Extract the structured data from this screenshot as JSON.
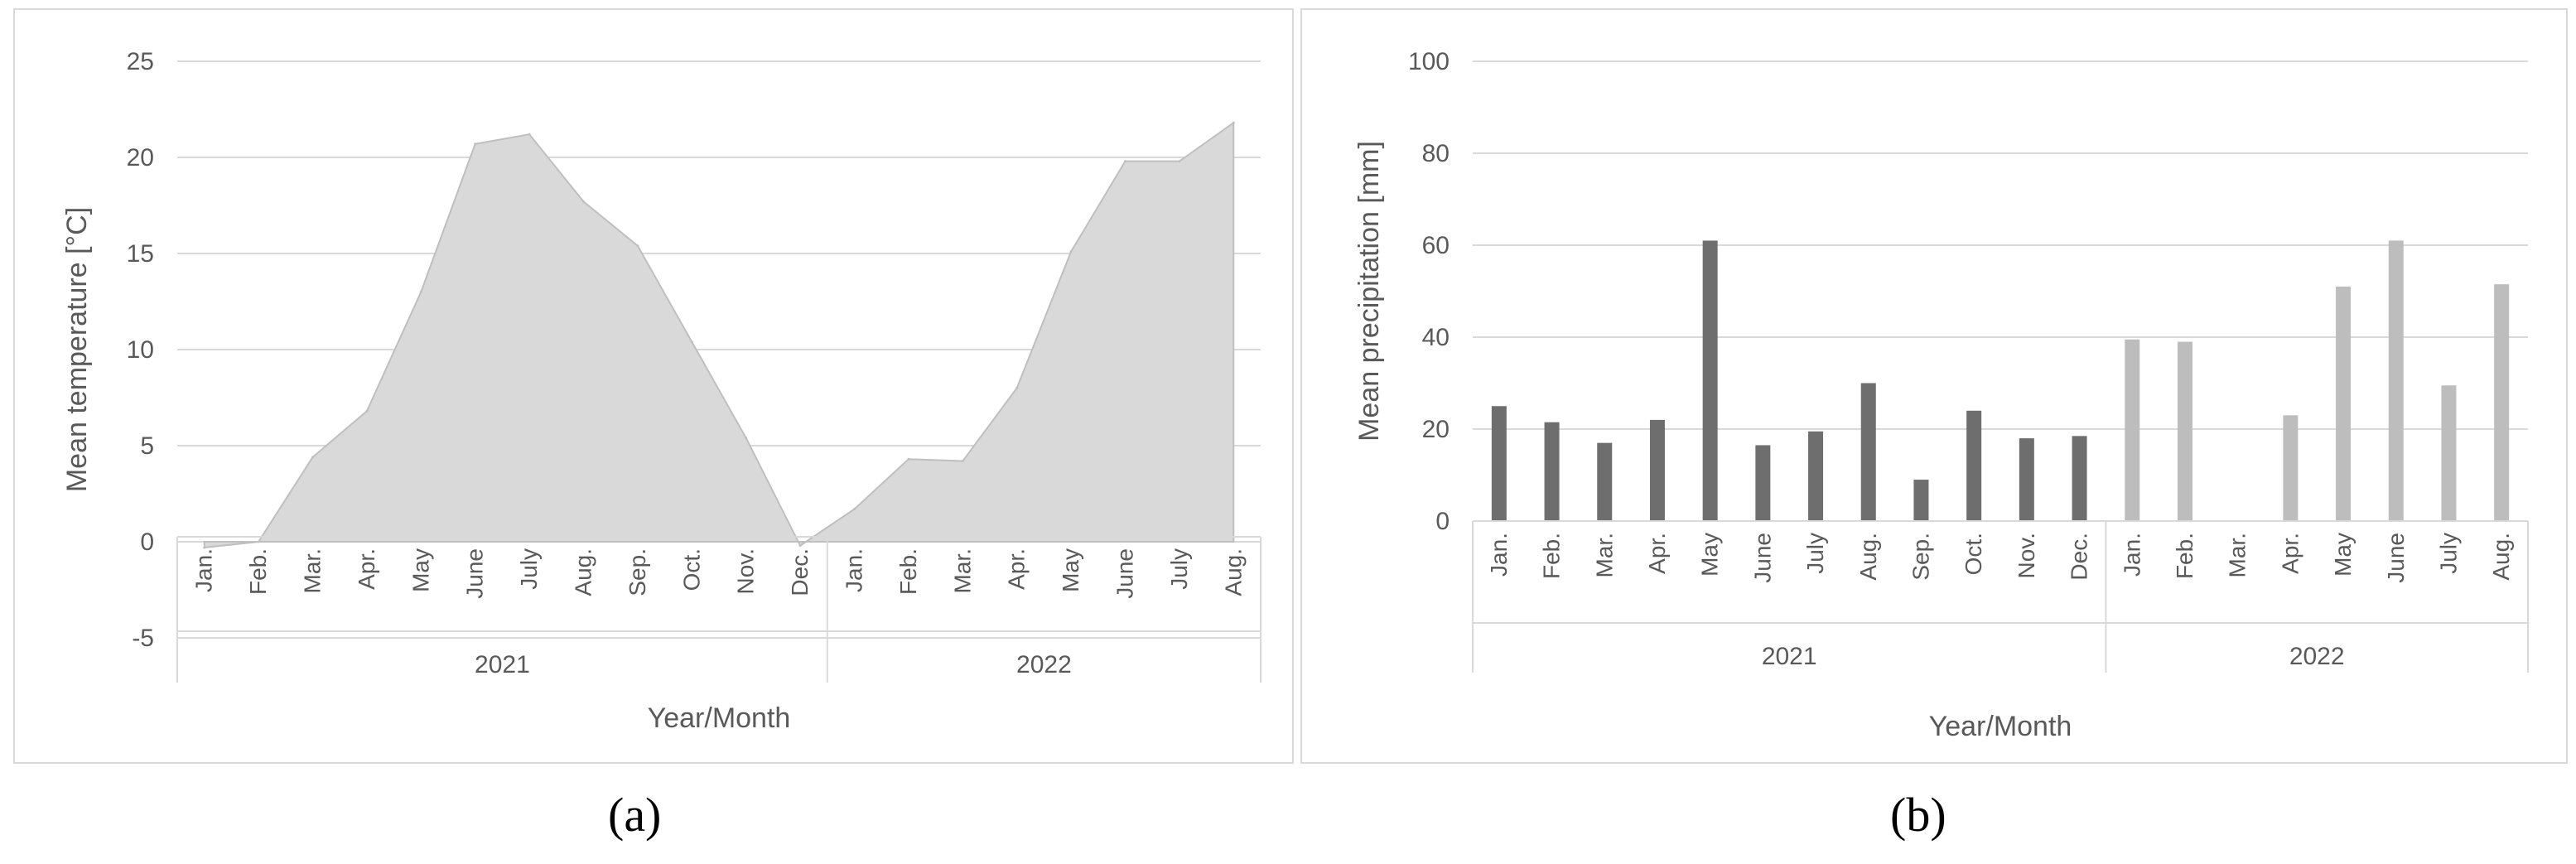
{
  "panel_labels": [
    "(a)",
    "(b)"
  ],
  "chart_data": [
    {
      "type": "area",
      "categories": [
        "Jan.",
        "Feb.",
        "Mar.",
        "Apr.",
        "May",
        "June",
        "July",
        "Aug.",
        "Sep.",
        "Oct.",
        "Nov.",
        "Dec.",
        "Jan.",
        "Feb.",
        "Mar.",
        "Apr.",
        "May",
        "June",
        "July",
        "Aug."
      ],
      "groups": [
        {
          "label": "2021",
          "count": 12
        },
        {
          "label": "2022",
          "count": 8
        }
      ],
      "values": [
        -0.3,
        0,
        4.4,
        6.8,
        13,
        20.7,
        21.2,
        17.7,
        15.4,
        10.4,
        5.4,
        -0.2,
        1.7,
        4.3,
        4.2,
        8,
        15.1,
        19.8,
        19.8,
        21.8
      ],
      "xlabel": "Year/Month",
      "ylabel": "Mean temperature  [°C]",
      "ylim": [
        -5,
        25
      ],
      "yticks": [
        -5,
        0,
        5,
        10,
        15,
        20,
        25
      ],
      "grid": true,
      "colors": {
        "fill": "#d9d9d9",
        "stroke": "#bfbfbf"
      }
    },
    {
      "type": "bar",
      "categories": [
        "Jan.",
        "Feb.",
        "Mar.",
        "Apr.",
        "May",
        "June",
        "July",
        "Aug.",
        "Sep.",
        "Oct.",
        "Nov.",
        "Dec.",
        "Jan.",
        "Feb.",
        "Mar.",
        "Apr.",
        "May",
        "June",
        "July",
        "Aug."
      ],
      "groups": [
        {
          "label": "2021",
          "count": 12
        },
        {
          "label": "2022",
          "count": 8
        }
      ],
      "values": [
        25,
        21.5,
        17,
        22,
        61,
        16.5,
        19.5,
        30,
        9,
        24,
        18,
        18.5,
        39.5,
        39,
        0,
        23,
        51,
        61,
        29.5,
        51.5
      ],
      "xlabel": "Year/Month",
      "ylabel": "Mean precipitation [mm]",
      "ylim": [
        0,
        100
      ],
      "yticks": [
        0,
        20,
        40,
        60,
        80,
        100
      ],
      "grid": true,
      "colors": {
        "2021": "#6e6e6e",
        "2022": "#bdbdbd"
      }
    }
  ]
}
